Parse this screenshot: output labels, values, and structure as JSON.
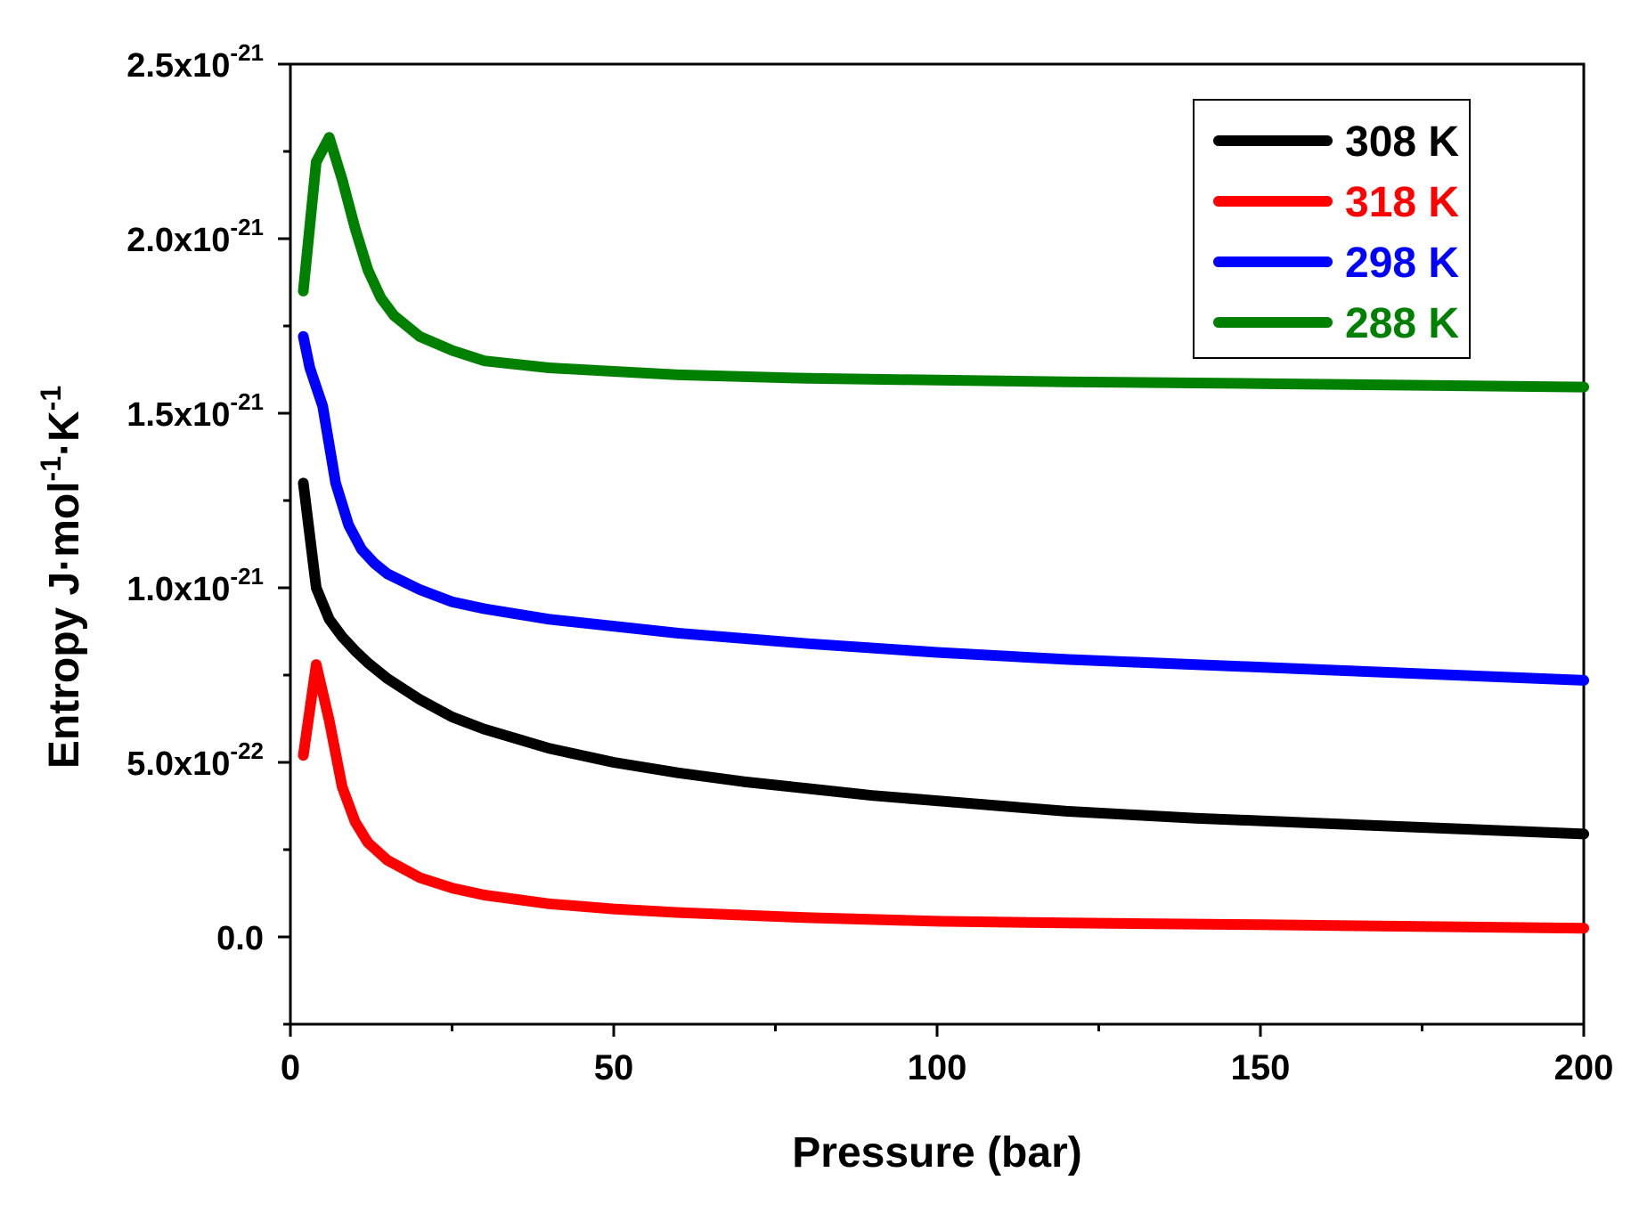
{
  "chart_data": {
    "type": "line",
    "title": "",
    "xlabel": "Pressure (bar)",
    "ylabel": {
      "parts": [
        "Entropy J·mol",
        "-1",
        "·K",
        "-1"
      ]
    },
    "xlim": [
      0,
      200
    ],
    "ylim": [
      -2.5e-22,
      2.5e-21
    ],
    "x_ticks": [
      {
        "value": 0,
        "label": "0"
      },
      {
        "value": 50,
        "label": "50"
      },
      {
        "value": 100,
        "label": "100"
      },
      {
        "value": 150,
        "label": "150"
      },
      {
        "value": 200,
        "label": "200"
      }
    ],
    "x_minor_ticks": [
      25,
      75,
      125,
      175
    ],
    "y_ticks": [
      {
        "value": 0,
        "mantissa": "0.0",
        "exponent": ""
      },
      {
        "value": 5e-22,
        "mantissa": "5.0x10",
        "exponent": "-22"
      },
      {
        "value": 1e-21,
        "mantissa": "1.0x10",
        "exponent": "-21"
      },
      {
        "value": 1.5e-21,
        "mantissa": "1.5x10",
        "exponent": "-21"
      },
      {
        "value": 2e-21,
        "mantissa": "2.0x10",
        "exponent": "-21"
      },
      {
        "value": 2.5e-21,
        "mantissa": "2.5x10",
        "exponent": "-21"
      }
    ],
    "y_minor_ticks": [
      -2.5e-22,
      2.5e-22,
      7.5e-22,
      1.25e-21,
      1.75e-21,
      2.25e-21
    ],
    "grid": false,
    "legend_position": "top-right",
    "series": [
      {
        "name": "308 K",
        "color": "#000000",
        "x": [
          2,
          4,
          6,
          8,
          10,
          12,
          15,
          20,
          25,
          30,
          40,
          50,
          60,
          70,
          80,
          90,
          100,
          120,
          140,
          160,
          180,
          200
        ],
        "y": [
          1.3e-21,
          1e-21,
          9.1e-22,
          8.6e-22,
          8.2e-22,
          7.85e-22,
          7.4e-22,
          6.8e-22,
          6.3e-22,
          5.95e-22,
          5.4e-22,
          5e-22,
          4.7e-22,
          4.45e-22,
          4.25e-22,
          4.05e-22,
          3.9e-22,
          3.6e-22,
          3.4e-22,
          3.25e-22,
          3.1e-22,
          2.95e-22
        ]
      },
      {
        "name": "318 K",
        "color": "#ff0000",
        "x": [
          2,
          4,
          5,
          6,
          8,
          10,
          12,
          15,
          20,
          25,
          30,
          40,
          50,
          60,
          80,
          100,
          120,
          150,
          200
        ],
        "y": [
          5.2e-22,
          7.8e-22,
          7e-22,
          6.2e-22,
          4.3e-22,
          3.3e-22,
          2.7e-22,
          2.2e-22,
          1.7e-22,
          1.4e-22,
          1.2e-22,
          9.5e-23,
          8e-23,
          7e-23,
          5.5e-23,
          4.5e-23,
          4e-23,
          3.5e-23,
          2.5e-23
        ]
      },
      {
        "name": "298 K",
        "color": "#0000ff",
        "x": [
          2,
          3,
          5,
          7,
          9,
          11,
          13,
          15,
          20,
          25,
          30,
          40,
          50,
          60,
          80,
          100,
          120,
          140,
          160,
          180,
          200
        ],
        "y": [
          1.72e-21,
          1.63e-21,
          1.52e-21,
          1.3e-21,
          1.18e-21,
          1.11e-21,
          1.07e-21,
          1.04e-21,
          9.95e-22,
          9.6e-22,
          9.4e-22,
          9.1e-22,
          8.9e-22,
          8.7e-22,
          8.4e-22,
          8.15e-22,
          7.95e-22,
          7.8e-22,
          7.65e-22,
          7.5e-22,
          7.35e-22
        ]
      },
      {
        "name": "288 K",
        "color": "#008000",
        "x": [
          2,
          4,
          6,
          8,
          10,
          12,
          14,
          16,
          18,
          20,
          25,
          30,
          40,
          50,
          60,
          80,
          100,
          120,
          150,
          200
        ],
        "y": [
          1.85e-21,
          2.22e-21,
          2.29e-21,
          2.17e-21,
          2.03e-21,
          1.91e-21,
          1.83e-21,
          1.78e-21,
          1.75e-21,
          1.72e-21,
          1.68e-21,
          1.65e-21,
          1.63e-21,
          1.62e-21,
          1.61e-21,
          1.6e-21,
          1.595e-21,
          1.59e-21,
          1.585e-21,
          1.575e-21
        ]
      }
    ]
  }
}
